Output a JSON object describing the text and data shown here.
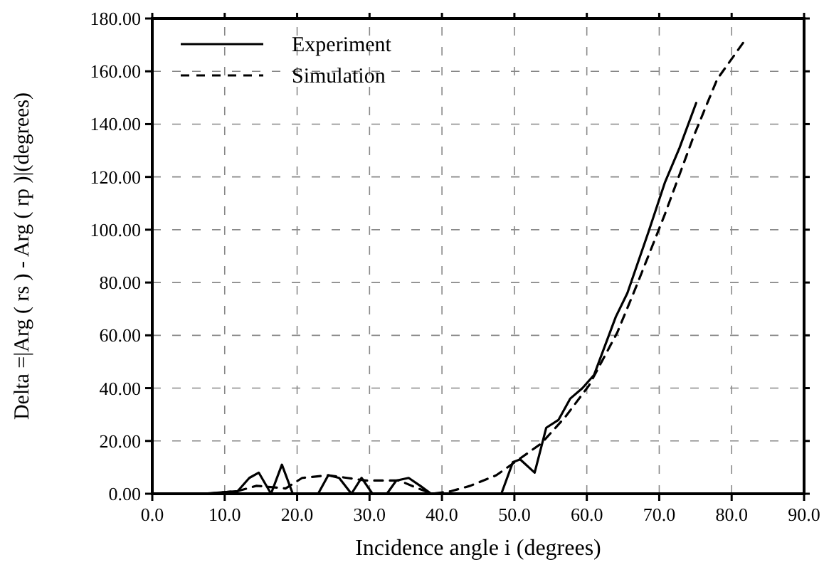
{
  "chart_data": {
    "type": "line",
    "xlabel": "Incidence angle i (degrees)",
    "ylabel": "Delta =|Arg ( rs ) - Arg ( rp )|(degrees)",
    "xlim": [
      0,
      90
    ],
    "ylim": [
      0,
      180
    ],
    "xticks": [
      {
        "value": 0,
        "label": "0.0"
      },
      {
        "value": 10,
        "label": "10.0"
      },
      {
        "value": 20,
        "label": "20.0"
      },
      {
        "value": 30,
        "label": "30.0"
      },
      {
        "value": 40,
        "label": "40.0"
      },
      {
        "value": 50,
        "label": "50.0"
      },
      {
        "value": 60,
        "label": "60.0"
      },
      {
        "value": 70,
        "label": "70.0"
      },
      {
        "value": 80,
        "label": "80.0"
      },
      {
        "value": 90,
        "label": "90.0"
      }
    ],
    "yticks": [
      {
        "value": 0,
        "label": "0.00"
      },
      {
        "value": 20,
        "label": "20.00"
      },
      {
        "value": 40,
        "label": "40.00"
      },
      {
        "value": 60,
        "label": "60.00"
      },
      {
        "value": 80,
        "label": "80.00"
      },
      {
        "value": 100,
        "label": "100.00"
      },
      {
        "value": 120,
        "label": "120.00"
      },
      {
        "value": 140,
        "label": "140.00"
      },
      {
        "value": 160,
        "label": "160.00"
      },
      {
        "value": 180,
        "label": "180.00"
      }
    ],
    "grid": true,
    "legend": "top left",
    "series": [
      {
        "name": "Experiment",
        "color": "#000000",
        "line_style": "solid",
        "x": [
          7,
          11.8,
          13.4,
          14.7,
          16.4,
          17.9,
          19.4,
          22.9,
          24.3,
          25.8,
          27.5,
          28.9,
          30.4,
          32.4,
          33.7,
          35.4,
          37,
          38.5,
          48.2,
          49.8,
          50.8,
          52.8,
          54.4,
          56.1,
          57.7,
          59.4,
          61,
          64,
          65.6,
          68.5,
          70.8,
          72.8,
          75.1
        ],
        "values": [
          0,
          1,
          6,
          8,
          0,
          11,
          0,
          0,
          7,
          6,
          0,
          6,
          0,
          0,
          5,
          6,
          3,
          0,
          0,
          12,
          13,
          8,
          25,
          28,
          36,
          40,
          45,
          67,
          76,
          99,
          118,
          131,
          148
        ]
      },
      {
        "name": "Simulation",
        "color": "#000000",
        "line_style": "dashed",
        "x": [
          7.5,
          11.8,
          14.4,
          18.4,
          20.7,
          24.3,
          26.9,
          29.5,
          32.1,
          34.1,
          36.7,
          38.7,
          41.3,
          43.9,
          47.5,
          53.7,
          57,
          60.3,
          64.2,
          66.9,
          70.8,
          74.7,
          78,
          81.9
        ],
        "values": [
          0,
          1,
          3,
          2,
          6,
          7,
          6,
          5,
          5,
          5,
          2,
          0,
          1,
          3,
          7,
          19,
          29,
          41,
          61,
          79,
          106,
          135,
          157,
          172
        ]
      }
    ]
  }
}
